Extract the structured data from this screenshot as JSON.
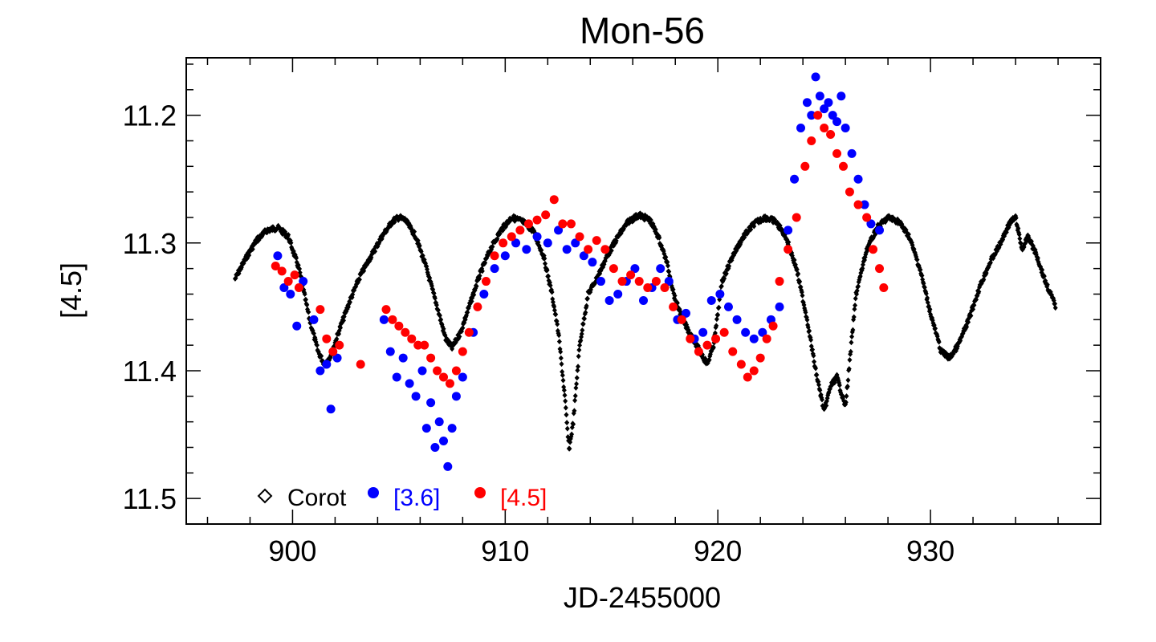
{
  "chart_data": {
    "type": "scatter",
    "title": "Mon-56",
    "xlabel": "JD-2455000",
    "ylabel": "[4.5]",
    "xlim": [
      895,
      938
    ],
    "ylim": [
      11.52,
      11.155
    ],
    "y_inverted": true,
    "xticks": [
      {
        "value": 900,
        "label": "900"
      },
      {
        "value": 910,
        "label": "910"
      },
      {
        "value": 920,
        "label": "920"
      },
      {
        "value": 930,
        "label": "930"
      }
    ],
    "yticks": [
      {
        "value": 11.2,
        "label": "11.2"
      },
      {
        "value": 11.3,
        "label": "11.3"
      },
      {
        "value": 11.4,
        "label": "11.4"
      },
      {
        "value": 11.5,
        "label": "11.5"
      }
    ],
    "legend": {
      "position": "bottom-left",
      "entries": [
        {
          "label": "Corot",
          "marker": "diamond-open",
          "color": "#000000"
        },
        {
          "label": "[3.6]",
          "marker": "circle-filled",
          "color": "#0000ff"
        },
        {
          "label": "[4.5]",
          "marker": "circle-filled",
          "color": "#ff0000"
        }
      ]
    },
    "series": [
      {
        "name": "Corot",
        "marker": "diamond",
        "color": "#000000",
        "x": [
          897.3,
          897.8,
          898.3,
          898.8,
          899.3,
          899.8,
          900.3,
          900.8,
          901.2,
          901.5,
          901.8,
          902.2,
          902.7,
          903.2,
          903.7,
          904.2,
          904.7,
          905.0,
          905.3,
          905.8,
          906.3,
          906.8,
          907.2,
          907.5,
          907.9,
          908.3,
          908.8,
          909.3,
          909.8,
          910.3,
          910.8,
          911.3,
          911.8,
          912.2,
          912.5,
          912.8,
          913.0,
          913.2,
          913.5,
          913.9,
          914.3,
          914.8,
          915.3,
          915.8,
          916.3,
          916.8,
          917.2,
          917.6,
          918.0,
          918.5,
          919.0,
          919.5,
          919.8,
          920.2,
          920.7,
          921.2,
          921.7,
          922.2,
          922.7,
          923.2,
          923.7,
          924.2,
          924.6,
          925.0,
          925.3,
          925.6,
          926.0,
          926.5,
          927.0,
          927.5,
          928.0,
          928.5,
          929.0,
          929.5,
          930.0,
          930.5,
          930.9,
          931.3,
          931.8,
          932.3,
          932.8,
          933.3,
          933.7,
          934.0,
          934.3,
          934.6,
          935.0,
          935.4,
          935.9
        ],
        "y": [
          11.328,
          11.312,
          11.298,
          11.29,
          11.288,
          11.295,
          11.32,
          11.36,
          11.385,
          11.395,
          11.388,
          11.368,
          11.345,
          11.325,
          11.31,
          11.295,
          11.283,
          11.28,
          11.282,
          11.295,
          11.32,
          11.35,
          11.375,
          11.382,
          11.37,
          11.35,
          11.325,
          11.305,
          11.29,
          11.28,
          11.283,
          11.29,
          11.31,
          11.34,
          11.37,
          11.42,
          11.462,
          11.44,
          11.38,
          11.34,
          11.328,
          11.31,
          11.295,
          11.283,
          11.278,
          11.282,
          11.295,
          11.315,
          11.345,
          11.365,
          11.38,
          11.395,
          11.38,
          11.33,
          11.31,
          11.295,
          11.285,
          11.28,
          11.283,
          11.295,
          11.32,
          11.36,
          11.4,
          11.432,
          11.412,
          11.405,
          11.428,
          11.34,
          11.305,
          11.288,
          11.28,
          11.283,
          11.295,
          11.32,
          11.355,
          11.385,
          11.39,
          11.38,
          11.36,
          11.335,
          11.315,
          11.3,
          11.285,
          11.28,
          11.305,
          11.295,
          11.31,
          11.33,
          11.35
        ]
      },
      {
        "name": "[3.6]",
        "marker": "circle",
        "color": "#0000ff",
        "x": [
          899.3,
          899.6,
          899.9,
          900.2,
          900.5,
          901.0,
          901.3,
          901.6,
          901.8,
          902.1,
          904.3,
          904.6,
          904.9,
          905.2,
          905.5,
          905.8,
          906.1,
          906.3,
          906.5,
          906.7,
          906.9,
          907.1,
          907.3,
          907.5,
          907.7,
          908.0,
          908.5,
          909.0,
          909.5,
          910.0,
          910.5,
          911.0,
          911.5,
          912.0,
          912.5,
          912.9,
          913.3,
          913.7,
          914.1,
          914.5,
          914.9,
          915.3,
          915.7,
          916.1,
          916.5,
          916.9,
          917.3,
          917.7,
          918.1,
          918.5,
          918.9,
          919.3,
          919.7,
          920.1,
          920.5,
          920.9,
          921.3,
          921.7,
          922.1,
          922.5,
          922.9,
          923.3,
          923.6,
          923.9,
          924.2,
          924.4,
          924.6,
          924.8,
          925.0,
          925.2,
          925.4,
          925.6,
          925.8,
          926.0,
          926.3,
          926.6,
          926.9,
          927.2,
          927.6
        ],
        "y": [
          11.31,
          11.335,
          11.34,
          11.365,
          11.33,
          11.36,
          11.4,
          11.395,
          11.43,
          11.39,
          11.36,
          11.385,
          11.405,
          11.39,
          11.41,
          11.42,
          11.4,
          11.445,
          11.425,
          11.46,
          11.44,
          11.455,
          11.475,
          11.445,
          11.42,
          11.405,
          11.37,
          11.34,
          11.32,
          11.31,
          11.3,
          11.305,
          11.295,
          11.3,
          11.29,
          11.305,
          11.3,
          11.31,
          11.315,
          11.33,
          11.345,
          11.34,
          11.33,
          11.32,
          11.345,
          11.335,
          11.32,
          11.33,
          11.36,
          11.355,
          11.375,
          11.37,
          11.345,
          11.34,
          11.35,
          11.36,
          11.37,
          11.375,
          11.37,
          11.36,
          11.35,
          11.29,
          11.25,
          11.21,
          11.19,
          11.2,
          11.17,
          11.185,
          11.195,
          11.19,
          11.2,
          11.205,
          11.185,
          11.21,
          11.23,
          11.25,
          11.27,
          11.285,
          11.29
        ]
      },
      {
        "name": "[4.5]",
        "marker": "circle",
        "color": "#ff0000",
        "x": [
          899.2,
          899.5,
          899.8,
          900.1,
          900.3,
          901.3,
          901.6,
          901.9,
          902.2,
          903.2,
          904.4,
          904.7,
          905.0,
          905.3,
          905.6,
          905.9,
          906.2,
          906.5,
          906.8,
          907.1,
          907.4,
          907.7,
          908.0,
          908.3,
          908.7,
          909.1,
          909.5,
          909.9,
          910.3,
          910.7,
          911.1,
          911.5,
          911.9,
          912.3,
          912.7,
          913.1,
          913.5,
          913.9,
          914.3,
          914.7,
          915.1,
          915.5,
          915.9,
          916.3,
          916.7,
          917.1,
          917.5,
          917.9,
          918.3,
          918.7,
          919.1,
          919.5,
          919.9,
          920.3,
          920.7,
          921.1,
          921.4,
          921.7,
          922.0,
          922.3,
          922.6,
          922.9,
          923.3,
          923.7,
          924.1,
          924.4,
          924.7,
          925.0,
          925.3,
          925.6,
          925.9,
          926.2,
          926.6,
          927.0,
          927.3,
          927.6,
          927.8
        ],
        "y": [
          11.318,
          11.322,
          11.33,
          11.325,
          11.335,
          11.352,
          11.375,
          11.385,
          11.38,
          11.395,
          11.352,
          11.36,
          11.365,
          11.37,
          11.375,
          11.38,
          11.38,
          11.39,
          11.4,
          11.405,
          11.41,
          11.4,
          11.385,
          11.37,
          11.35,
          11.33,
          11.31,
          11.3,
          11.295,
          11.29,
          11.285,
          11.282,
          11.278,
          11.266,
          11.285,
          11.285,
          11.295,
          11.305,
          11.298,
          11.305,
          11.32,
          11.33,
          11.325,
          11.33,
          11.335,
          11.33,
          11.335,
          11.35,
          11.36,
          11.375,
          11.385,
          11.38,
          11.375,
          11.37,
          11.385,
          11.395,
          11.405,
          11.4,
          11.39,
          11.375,
          11.365,
          11.33,
          11.305,
          11.28,
          11.24,
          11.22,
          11.2,
          11.21,
          11.215,
          11.23,
          11.24,
          11.26,
          11.27,
          11.28,
          11.305,
          11.32,
          11.335
        ]
      }
    ]
  }
}
